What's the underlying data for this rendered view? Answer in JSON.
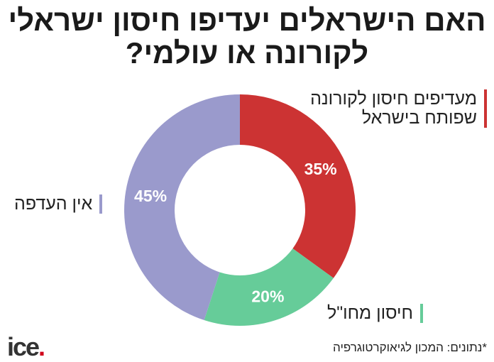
{
  "title": "האם הישראלים יעדיפו חיסון ישראלי לקורונה או עולמי?",
  "chart_data": {
    "type": "pie",
    "donut": true,
    "title": "האם הישראלים יעדיפו חיסון ישראלי לקורונה או עולמי?",
    "categories": [
      "מעדיפים חיסון לקורונה שפותח בישראל",
      "חיסון מחו\"ל",
      "אין העדפה"
    ],
    "values": [
      35,
      20,
      45
    ],
    "labels": [
      "35%",
      "20%",
      "45%"
    ],
    "colors": [
      "#cc3333",
      "#66cc99",
      "#9a9acc"
    ],
    "start": "top",
    "direction": "clockwise"
  },
  "legend": [
    "מעדיפים חיסון לקורונה שפותח בישראל",
    "חיסון מחו\"ל",
    "אין העדפה"
  ],
  "source": "*נתונים: המכון לגיאוקרטוגרפיה",
  "logo": "ice."
}
